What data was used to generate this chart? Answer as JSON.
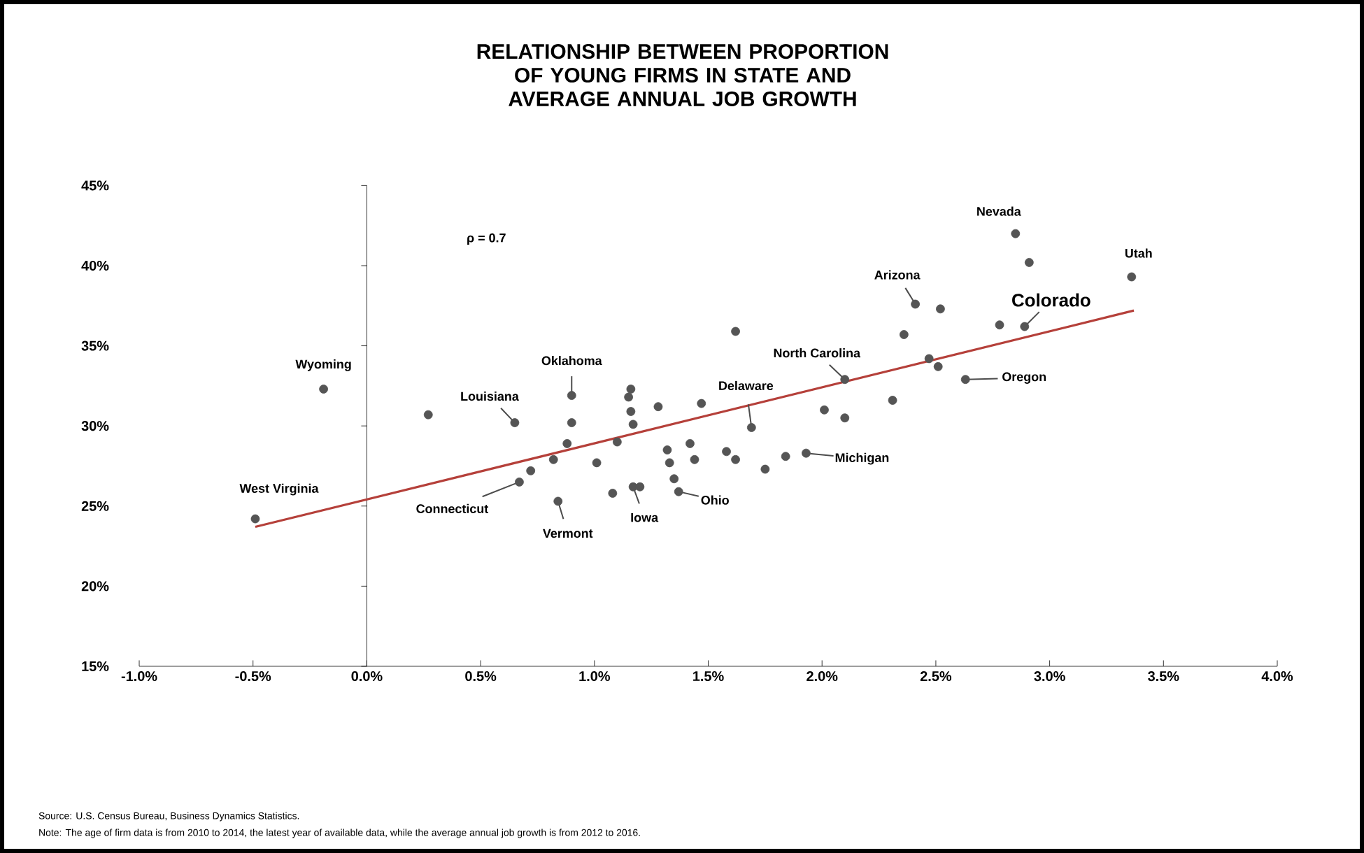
{
  "chart_data": {
    "type": "scatter",
    "title": "RELATIONSHIP BETWEEN PROPORTION OF YOUNG FIRMS IN STATE AND AVERAGE ANNUAL JOB GROWTH",
    "xlim": [
      -1,
      4
    ],
    "ylim": [
      15,
      45
    ],
    "xticks": [
      {
        "value": -1,
        "label": "-1.0%"
      },
      {
        "value": -0.5,
        "label": "-0.5%"
      },
      {
        "value": 0,
        "label": "0.0%"
      },
      {
        "value": 0.5,
        "label": "0.5%"
      },
      {
        "value": 1,
        "label": "1.0%"
      },
      {
        "value": 1.5,
        "label": "1.5%"
      },
      {
        "value": 2,
        "label": "2.0%"
      },
      {
        "value": 2.5,
        "label": "2.5%"
      },
      {
        "value": 3,
        "label": "3.0%"
      },
      {
        "value": 3.5,
        "label": "3.5%"
      },
      {
        "value": 4,
        "label": "4.0%"
      }
    ],
    "yticks": [
      {
        "value": 15,
        "label": "15%"
      },
      {
        "value": 20,
        "label": "20%"
      },
      {
        "value": 25,
        "label": "25%"
      },
      {
        "value": 30,
        "label": "30%"
      },
      {
        "value": 35,
        "label": "35%"
      },
      {
        "value": 40,
        "label": "40%"
      },
      {
        "value": 45,
        "label": "45%"
      }
    ],
    "series": [
      {
        "marker": "circle",
        "color": "#555555",
        "x": [
          -0.49,
          -0.19,
          0.27,
          0.65,
          0.67,
          0.72,
          0.82,
          0.84,
          0.9,
          0.9,
          0.88,
          1.01,
          1.08,
          1.17,
          1.2,
          1.1,
          1.16,
          1.15,
          1.16,
          1.17,
          1.28,
          1.32,
          1.33,
          1.35,
          1.37,
          1.42,
          1.44,
          1.47,
          1.58,
          1.62,
          1.62,
          1.69,
          1.75,
          1.84,
          1.93,
          2.01,
          2.1,
          2.1,
          2.31,
          2.36,
          2.41,
          2.52,
          2.47,
          2.51,
          2.63,
          2.78,
          2.89,
          2.85,
          2.91,
          3.36
        ],
        "values": [
          24.2,
          32.3,
          30.7,
          30.2,
          26.5,
          27.2,
          27.9,
          25.3,
          31.9,
          30.2,
          28.9,
          27.7,
          25.8,
          26.2,
          26.2,
          29.0,
          32.3,
          31.8,
          30.9,
          30.1,
          31.2,
          28.5,
          27.7,
          26.7,
          25.9,
          28.9,
          27.9,
          31.4,
          28.4,
          27.9,
          35.9,
          29.9,
          27.3,
          28.1,
          28.3,
          31.0,
          30.5,
          32.9,
          31.6,
          35.7,
          37.6,
          37.3,
          34.2,
          33.7,
          32.9,
          36.3,
          36.2,
          42.0,
          40.2,
          39.3
        ]
      },
      {
        "type": "line",
        "marker": "none",
        "color": "#b5403a",
        "x": [
          -0.49,
          3.37
        ],
        "values": [
          23.7,
          37.2
        ]
      }
    ],
    "annotations": [
      {
        "text": "West Virginia",
        "x": -0.49,
        "y": 24.2
      },
      {
        "text": "Wyoming",
        "x": -0.19,
        "y": 32.3
      },
      {
        "text": "Louisiana",
        "x": 0.65,
        "y": 30.2
      },
      {
        "text": "Oklahoma",
        "x": 0.9,
        "y": 31.9
      },
      {
        "text": "Connecticut",
        "x": 0.67,
        "y": 26.5
      },
      {
        "text": "Vermont",
        "x": 0.84,
        "y": 25.3
      },
      {
        "text": "Iowa",
        "x": 1.17,
        "y": 26.2
      },
      {
        "text": "Ohio",
        "x": 1.37,
        "y": 25.9
      },
      {
        "text": "Delaware",
        "x": 1.69,
        "y": 29.9
      },
      {
        "text": "Michigan",
        "x": 1.93,
        "y": 28.3
      },
      {
        "text": "North Carolina",
        "x": 2.1,
        "y": 32.9
      },
      {
        "text": "Arizona",
        "x": 2.41,
        "y": 37.6
      },
      {
        "text": "Nevada",
        "x": 2.85,
        "y": 42.0
      },
      {
        "text": "Colorado",
        "x": 2.89,
        "y": 36.2
      },
      {
        "text": "Oregon",
        "x": 2.63,
        "y": 32.9
      },
      {
        "text": "Utah",
        "x": 3.36,
        "y": 39.3
      },
      "ρ = 0.7",
      "Source: U.S. Census Bureau, Business Dynamics Statistics.",
      "Note: The age of firm data is from 2010 to 2014, the latest year of available data, while the average annual job growth is from 2012 to 2016."
    ]
  }
}
